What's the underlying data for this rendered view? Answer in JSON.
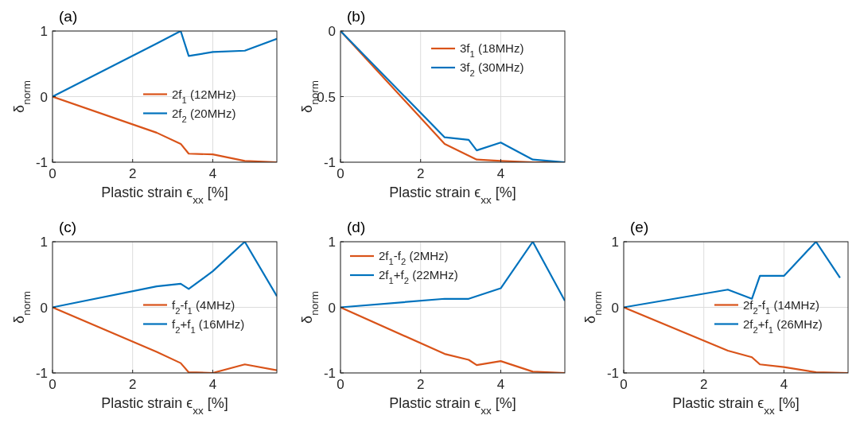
{
  "chart_data": [
    {
      "type": "line",
      "title": "(a)",
      "xlabel": "Plastic strain  ϵ$_{xx}$ [%]",
      "ylabel": "δ$_{norm}$",
      "xlim": [
        0,
        5.6
      ],
      "xticks": [
        0,
        2,
        4
      ],
      "ylim": [
        -1,
        1
      ],
      "yticks": [
        -1,
        0,
        1
      ],
      "grid": true,
      "legend": "right",
      "series": [
        {
          "name": "2f$_{1}$ (12MHz)",
          "color": "#d95319",
          "x": [
            0,
            2.6,
            3.2,
            3.4,
            4,
            4.8,
            5.6
          ],
          "values": [
            0,
            -0.55,
            -0.72,
            -0.87,
            -0.88,
            -0.98,
            -1
          ]
        },
        {
          "name": "2f$_{2}$ (20MHz)",
          "color": "#0072bd",
          "x": [
            0,
            2.6,
            3.2,
            3.4,
            4,
            4.8,
            5.6
          ],
          "values": [
            0,
            0.81,
            1,
            0.62,
            0.68,
            0.7,
            0.88
          ]
        }
      ]
    },
    {
      "type": "line",
      "title": "(b)",
      "xlabel": "Plastic strain  ϵ$_{xx}$ [%]",
      "ylabel": "δ$_{norm}$",
      "xlim": [
        0,
        5.6
      ],
      "xticks": [
        0,
        2,
        4
      ],
      "ylim": [
        -1,
        0
      ],
      "yticks": [
        -1,
        {
          "value": -0.5,
          "label": "0.5"
        },
        0
      ],
      "grid": true,
      "legend": "top right",
      "series": [
        {
          "name": "3f$_{1}$ (18MHz)",
          "color": "#d95319",
          "x": [
            0,
            2.6,
            3.4,
            4,
            4.8,
            5.6
          ],
          "values": [
            0,
            -0.86,
            -0.98,
            -0.99,
            -1,
            -1
          ]
        },
        {
          "name": "3f$_{2}$ (30MHz)",
          "color": "#0072bd",
          "x": [
            0,
            2.6,
            3.2,
            3.4,
            4,
            4.8,
            5.6
          ],
          "values": [
            0,
            -0.81,
            -0.83,
            -0.91,
            -0.85,
            -0.98,
            -1
          ]
        }
      ]
    },
    {
      "type": "line",
      "title": "(c)",
      "xlabel": "Plastic strain  ϵ$_{xx}$ [%]",
      "ylabel": "δ$_{norm}$",
      "xlim": [
        0,
        5.6
      ],
      "xticks": [
        0,
        2,
        4
      ],
      "ylim": [
        -1,
        1
      ],
      "yticks": [
        -1,
        0,
        1
      ],
      "grid": true,
      "legend": "right",
      "series": [
        {
          "name": "f$_{2}$-f$_{1}$ (4MHz)",
          "color": "#d95319",
          "x": [
            0,
            2.6,
            3.2,
            3.4,
            4,
            4.8,
            5.6
          ],
          "values": [
            0,
            -0.68,
            -0.85,
            -0.99,
            -1,
            -0.87,
            -0.96
          ]
        },
        {
          "name": "f$_{2}$+f$_{1}$ (16MHz)",
          "color": "#0072bd",
          "x": [
            0,
            2.6,
            3.2,
            3.4,
            4,
            4.8,
            5.6
          ],
          "values": [
            0,
            0.32,
            0.36,
            0.28,
            0.55,
            1,
            0.17
          ]
        }
      ]
    },
    {
      "type": "line",
      "title": "(d)",
      "xlabel": "Plastic strain  ϵ$_{xx}$ [%]",
      "ylabel": "δ$_{norm}$",
      "xlim": [
        0,
        5.6
      ],
      "xticks": [
        0,
        2,
        4
      ],
      "ylim": [
        -1,
        1
      ],
      "yticks": [
        -1,
        0,
        1
      ],
      "grid": true,
      "legend": "top left",
      "series": [
        {
          "name": "2f$_{1}$-f$_{2}$ (2MHz)",
          "color": "#d95319",
          "x": [
            0,
            2.6,
            3.2,
            3.4,
            4,
            4.8,
            5.6
          ],
          "values": [
            0,
            -0.71,
            -0.8,
            -0.88,
            -0.82,
            -0.98,
            -1
          ]
        },
        {
          "name": "2f$_{1}$+f$_{2}$ (22MHz)",
          "color": "#0072bd",
          "x": [
            0,
            2.6,
            3.2,
            4,
            4.8,
            5.6
          ],
          "values": [
            0,
            0.13,
            0.13,
            0.29,
            1,
            0.1
          ]
        }
      ]
    },
    {
      "type": "line",
      "title": "(e)",
      "xlabel": "Plastic strain  ϵ$_{xx}$ [%]",
      "ylabel": "δ$_{norm}$",
      "xlim": [
        0,
        5.6
      ],
      "xticks": [
        0,
        2,
        4
      ],
      "ylim": [
        -1,
        1
      ],
      "yticks": [
        -1,
        0,
        1
      ],
      "grid": true,
      "legend": "right",
      "series": [
        {
          "name": "2f$_{2}$-f$_{1}$ (14MHz)",
          "color": "#d95319",
          "x": [
            0,
            2.6,
            3.2,
            3.4,
            4,
            4.8,
            5.6
          ],
          "values": [
            0,
            -0.66,
            -0.76,
            -0.87,
            -0.91,
            -0.99,
            -1
          ]
        },
        {
          "name": "2f$_{2}$+f$_{1}$ (26MHz)",
          "color": "#0072bd",
          "x": [
            0,
            2.6,
            3.2,
            3.4,
            4,
            4.8,
            5.4
          ],
          "values": [
            0,
            0.27,
            0.13,
            0.48,
            0.48,
            1,
            0.45
          ]
        }
      ]
    }
  ]
}
